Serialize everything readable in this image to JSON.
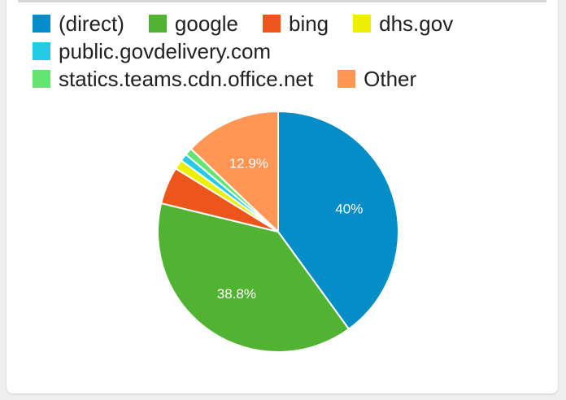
{
  "chart_data": {
    "type": "pie",
    "legend_position": "top",
    "slices": [
      {
        "label": "(direct)",
        "value": 40.0,
        "color": "#058dc7",
        "data_label": "40%"
      },
      {
        "label": "google",
        "value": 38.8,
        "color": "#50b432",
        "data_label": "38.8%"
      },
      {
        "label": "bing",
        "value": 5.0,
        "color": "#ed561b",
        "data_label": ""
      },
      {
        "label": "dhs.gov",
        "value": 1.3,
        "color": "#edef00",
        "data_label": ""
      },
      {
        "label": "public.govdelivery.com",
        "value": 1.0,
        "color": "#24cbe5",
        "data_label": ""
      },
      {
        "label": "statics.teams.cdn.office.net",
        "value": 1.0,
        "color": "#64e572",
        "data_label": ""
      },
      {
        "label": "Other",
        "value": 12.9,
        "color": "#ff9655",
        "data_label": "12.9%"
      }
    ]
  }
}
